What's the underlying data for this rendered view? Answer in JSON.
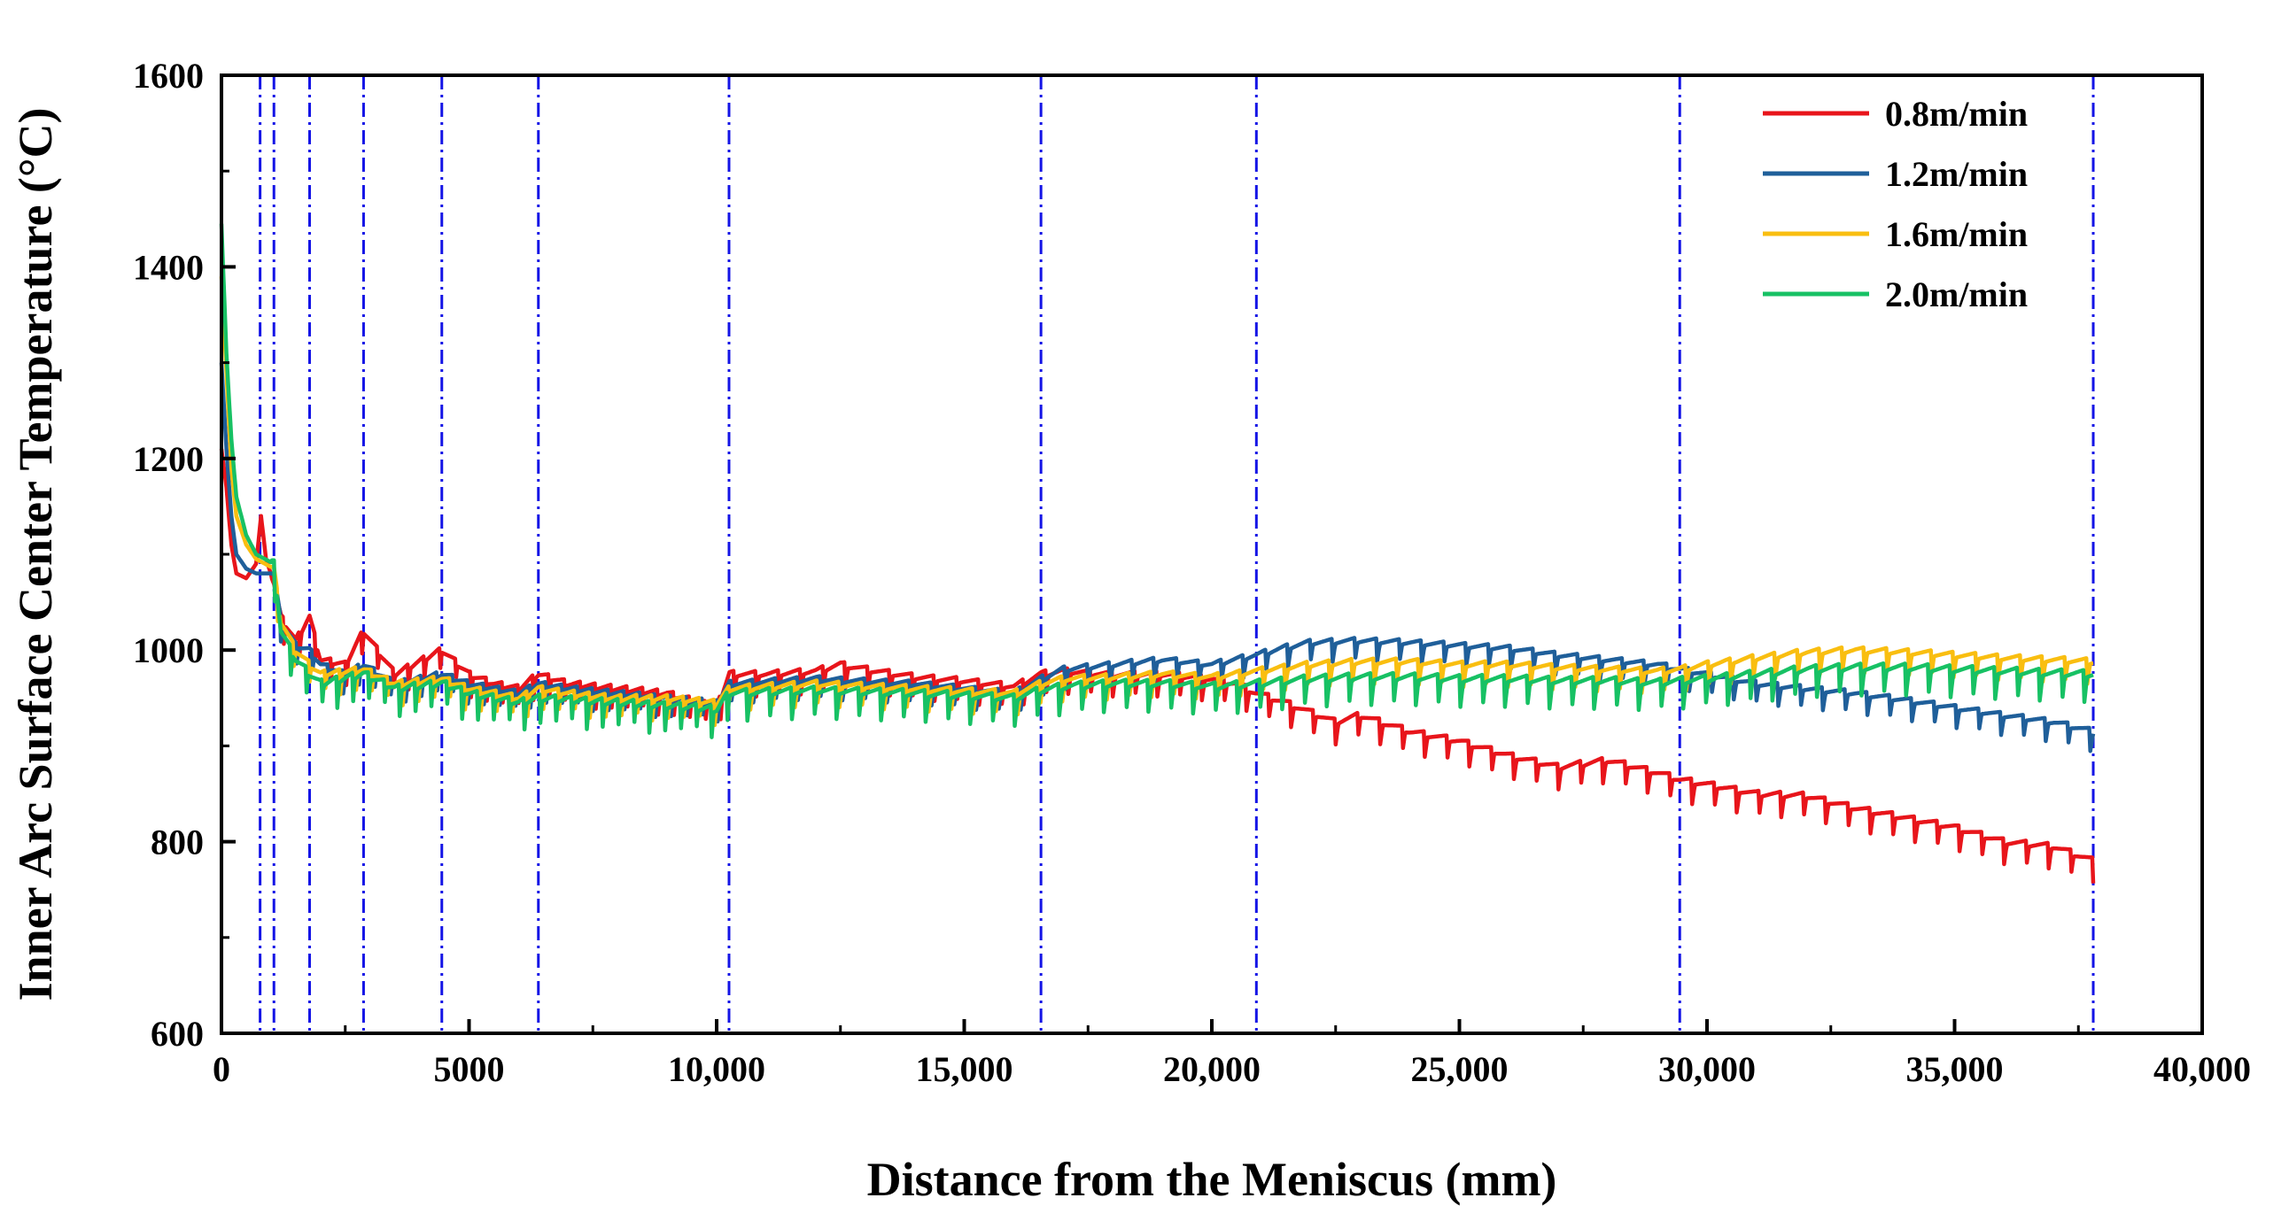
{
  "chart_data": {
    "type": "line",
    "title": "",
    "xlabel": "Distance from the Meniscus (mm)",
    "ylabel": "Inner Arc Surface Center Temperature (°C)",
    "xlim": [
      0,
      40000
    ],
    "ylim": [
      600,
      1600
    ],
    "grid": false,
    "legend_position": "top-right",
    "x_ticks": [
      {
        "value": 0,
        "label": "0"
      },
      {
        "value": 5000,
        "label": "5000"
      },
      {
        "value": 10000,
        "label": "10,000"
      },
      {
        "value": 15000,
        "label": "15,000"
      },
      {
        "value": 20000,
        "label": "20,000"
      },
      {
        "value": 25000,
        "label": "25,000"
      },
      {
        "value": 30000,
        "label": "30,000"
      },
      {
        "value": 35000,
        "label": "35,000"
      },
      {
        "value": 40000,
        "label": "40,000"
      }
    ],
    "y_ticks": [
      {
        "value": 600,
        "label": "600"
      },
      {
        "value": 800,
        "label": "800"
      },
      {
        "value": 1000,
        "label": "1000"
      },
      {
        "value": 1200,
        "label": "1200"
      },
      {
        "value": 1400,
        "label": "1400"
      },
      {
        "value": 1600,
        "label": "1600"
      }
    ],
    "zone_boundaries": [
      780,
      1060,
      1780,
      2870,
      4450,
      6400,
      10250,
      16550,
      20900,
      29450,
      37800
    ],
    "series": [
      {
        "name": "0.8m/min",
        "color": "#e8151b",
        "x": [
          0,
          100,
          200,
          300,
          500,
          700,
          800,
          900,
          1060,
          1200,
          1500,
          1780,
          2000,
          2500,
          2870,
          3500,
          4450,
          5000,
          5500,
          6000,
          6400,
          7000,
          8000,
          9000,
          10000,
          10250,
          11000,
          12000,
          12500,
          13000,
          14000,
          15000,
          16000,
          16550,
          17000,
          18000,
          19000,
          20000,
          20500,
          20900,
          21500,
          22000,
          22500,
          23000,
          24000,
          25000,
          26000,
          27000,
          28000,
          29000,
          29450,
          30000,
          31000,
          32000,
          33000,
          34000,
          35000,
          36000,
          37000,
          37800
        ],
        "y": [
          1210,
          1170,
          1110,
          1080,
          1075,
          1090,
          1140,
          1095,
          1070,
          1035,
          1010,
          1035,
          990,
          985,
          1020,
          975,
          1000,
          975,
          965,
          960,
          975,
          965,
          960,
          955,
          940,
          975,
          975,
          978,
          985,
          980,
          972,
          968,
          962,
          975,
          978,
          975,
          975,
          970,
          965,
          955,
          945,
          935,
          925,
          932,
          915,
          905,
          890,
          878,
          885,
          872,
          865,
          860,
          850,
          848,
          835,
          825,
          815,
          800,
          795,
          780
        ],
        "dip_spacing": 450,
        "dip_depth": 20
      },
      {
        "name": "1.2m/min",
        "color": "#1f5f9a",
        "x": [
          0,
          100,
          200,
          300,
          500,
          700,
          1060,
          1200,
          1500,
          1780,
          2000,
          2500,
          2870,
          3500,
          4450,
          5000,
          6000,
          6400,
          7000,
          8000,
          9000,
          10000,
          10250,
          12000,
          14000,
          16000,
          16550,
          17000,
          18000,
          19000,
          20000,
          20900,
          21500,
          22000,
          23000,
          24000,
          25000,
          26000,
          27000,
          28000,
          29000,
          29450,
          30000,
          31000,
          32000,
          33000,
          34000,
          35000,
          36000,
          37000,
          37800
        ],
        "y": [
          1300,
          1210,
          1140,
          1100,
          1085,
          1080,
          1080,
          1030,
          1005,
          1000,
          985,
          975,
          985,
          965,
          975,
          965,
          955,
          965,
          960,
          955,
          950,
          945,
          965,
          970,
          965,
          955,
          970,
          980,
          985,
          990,
          985,
          995,
          1003,
          1008,
          1010,
          1008,
          1005,
          1002,
          995,
          990,
          985,
          980,
          975,
          965,
          960,
          955,
          948,
          940,
          932,
          925,
          915
        ],
        "dip_spacing": 450,
        "dip_depth": 18
      },
      {
        "name": "1.6m/min",
        "color": "#f9be10",
        "x": [
          0,
          100,
          200,
          300,
          500,
          700,
          1060,
          1200,
          1500,
          1780,
          2000,
          2870,
          3500,
          4450,
          5000,
          6000,
          6400,
          7000,
          8000,
          9000,
          10000,
          10250,
          12000,
          14000,
          16000,
          16550,
          17000,
          18000,
          19000,
          20000,
          20900,
          21500,
          22000,
          23000,
          24000,
          25000,
          26000,
          27000,
          28000,
          29000,
          29450,
          30000,
          31000,
          32000,
          33000,
          34000,
          35000,
          36000,
          37000,
          37800
        ],
        "y": [
          1390,
          1290,
          1190,
          1140,
          1110,
          1095,
          1085,
          1030,
          1000,
          985,
          975,
          980,
          965,
          970,
          960,
          950,
          960,
          955,
          950,
          950,
          945,
          960,
          965,
          960,
          955,
          965,
          970,
          972,
          975,
          972,
          978,
          982,
          985,
          988,
          988,
          985,
          985,
          982,
          980,
          978,
          980,
          985,
          992,
          998,
          1000,
          998,
          995,
          992,
          990,
          988
        ],
        "dip_spacing": 450,
        "dip_depth": 20
      },
      {
        "name": "2.0m/min",
        "color": "#17c164",
        "x": [
          0,
          100,
          200,
          300,
          500,
          700,
          1060,
          1200,
          1500,
          1780,
          2000,
          2870,
          3500,
          4450,
          5000,
          6000,
          6400,
          7000,
          8000,
          9000,
          10000,
          10250,
          12000,
          14000,
          16000,
          16550,
          17000,
          18000,
          19000,
          20000,
          20900,
          21500,
          22000,
          23000,
          24000,
          25000,
          26000,
          27000,
          28000,
          29000,
          29450,
          30000,
          31000,
          32000,
          33000,
          34000,
          35000,
          36000,
          37000,
          37800
        ],
        "y": [
          1445,
          1310,
          1220,
          1160,
          1120,
          1100,
          1090,
          1020,
          990,
          975,
          965,
          975,
          960,
          965,
          955,
          945,
          950,
          948,
          945,
          942,
          938,
          955,
          958,
          955,
          950,
          958,
          962,
          965,
          965,
          962,
          965,
          968,
          970,
          972,
          972,
          970,
          970,
          968,
          968,
          966,
          968,
          970,
          975,
          980,
          982,
          982,
          980,
          978,
          976,
          975
        ],
        "dip_spacing": 450,
        "dip_depth": 25
      }
    ]
  }
}
